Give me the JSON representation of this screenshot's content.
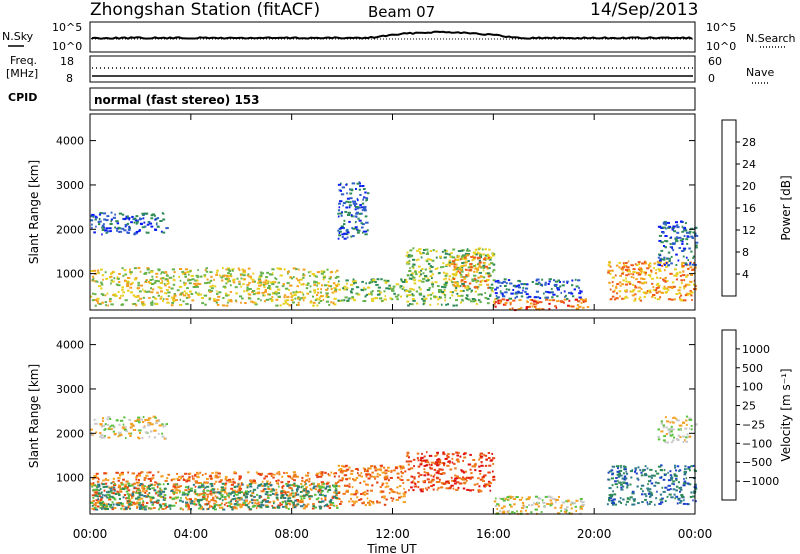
{
  "header": {
    "title": "Zhongshan Station (fitACF)",
    "beam": "Beam 07",
    "date": "14/Sep/2013"
  },
  "top_panels": {
    "nsky_label": "N.Sky",
    "nsky_ticks": [
      "10^5",
      "10^0"
    ],
    "nsearch_label": "N.Search",
    "nsearch_ticks": [
      "10^5",
      "10^0"
    ],
    "freq_label_1": "Freq.",
    "freq_label_2": "[MHz]",
    "freq_ticks": [
      "18",
      "8"
    ],
    "nave_label": "Nave",
    "nave_ticks": [
      "60",
      "0"
    ],
    "cpid_label": "CPID",
    "cpid_text": "normal (fast stereo) 153"
  },
  "chart_data": [
    {
      "type": "heatmap",
      "name": "power",
      "ylabel": "Slant Range [km]",
      "xlabel": "Time UT",
      "x_ticks": [
        "00:00",
        "04:00",
        "08:00",
        "12:00",
        "16:00",
        "20:00",
        "00:00"
      ],
      "y_ticks": [
        1000,
        2000,
        3000,
        4000
      ],
      "ylim": [
        180,
        4600
      ],
      "xlim_hours": [
        0,
        24
      ],
      "colorbar": {
        "label": "Power [dB]",
        "ticks": [
          "4",
          "8",
          "12",
          "16",
          "20",
          "24",
          "28"
        ],
        "colors": [
          "#0a1cf0",
          "#2f5fc8",
          "#2e8b57",
          "#66b24a",
          "#e8d020",
          "#f5a020",
          "#ee5a1a",
          "#e01010"
        ]
      },
      "regions": [
        {
          "t": [
            0.0,
            9.8
          ],
          "r": [
            300,
            1150
          ],
          "level": 4
        },
        {
          "t": [
            0.0,
            3.0
          ],
          "r": [
            1900,
            2400
          ],
          "level": 1
        },
        {
          "t": [
            9.8,
            12.5
          ],
          "r": [
            400,
            900
          ],
          "level": 3
        },
        {
          "t": [
            9.8,
            11.0
          ],
          "r": [
            1800,
            3100
          ],
          "level": 1
        },
        {
          "t": [
            12.5,
            16.0
          ],
          "r": [
            300,
            1600
          ],
          "level": 3
        },
        {
          "t": [
            14.2,
            15.8
          ],
          "r": [
            700,
            1500
          ],
          "level": 5
        },
        {
          "t": [
            16.0,
            19.8
          ],
          "r": [
            200,
            450
          ],
          "level": 6
        },
        {
          "t": [
            16.0,
            19.5
          ],
          "r": [
            450,
            900
          ],
          "level": 1
        },
        {
          "t": [
            20.5,
            24.0
          ],
          "r": [
            400,
            1300
          ],
          "level": 5
        },
        {
          "t": [
            22.5,
            24.0
          ],
          "r": [
            1200,
            2200
          ],
          "level": 1
        }
      ]
    },
    {
      "type": "heatmap",
      "name": "velocity",
      "ylabel": "Slant Range [km]",
      "xlabel": "Time UT",
      "x_ticks": [
        "00:00",
        "04:00",
        "08:00",
        "12:00",
        "16:00",
        "20:00",
        "00:00"
      ],
      "y_ticks": [
        1000,
        2000,
        3000,
        4000
      ],
      "ylim": [
        180,
        4600
      ],
      "xlim_hours": [
        0,
        24
      ],
      "colorbar": {
        "label": "Velocity [m s⁻¹]",
        "ticks": [
          "1000",
          "500",
          "100",
          "25",
          "−25",
          "−100",
          "−500",
          "−1000"
        ],
        "colors": [
          "#1a3fc8",
          "#2e7a8a",
          "#2e8b57",
          "#5cc040",
          "#c8c8c8",
          "#f5a020",
          "#ee7a1a",
          "#e84010",
          "#e01010"
        ]
      },
      "regions": [
        {
          "t": [
            0.0,
            9.8
          ],
          "r": [
            300,
            1150
          ],
          "level": 6
        },
        {
          "t": [
            0.0,
            9.8
          ],
          "r": [
            300,
            900
          ],
          "level": 2
        },
        {
          "t": [
            0.0,
            3.0
          ],
          "r": [
            1900,
            2400
          ],
          "level": 4
        },
        {
          "t": [
            9.8,
            12.5
          ],
          "r": [
            400,
            1300
          ],
          "level": 6
        },
        {
          "t": [
            12.5,
            16.0
          ],
          "r": [
            700,
            1600
          ],
          "level": 7
        },
        {
          "t": [
            16.0,
            19.5
          ],
          "r": [
            200,
            600
          ],
          "level": 4
        },
        {
          "t": [
            20.5,
            24.0
          ],
          "r": [
            400,
            1300
          ],
          "level": 1
        },
        {
          "t": [
            22.5,
            24.0
          ],
          "r": [
            1800,
            2400
          ],
          "level": 4
        }
      ]
    }
  ]
}
